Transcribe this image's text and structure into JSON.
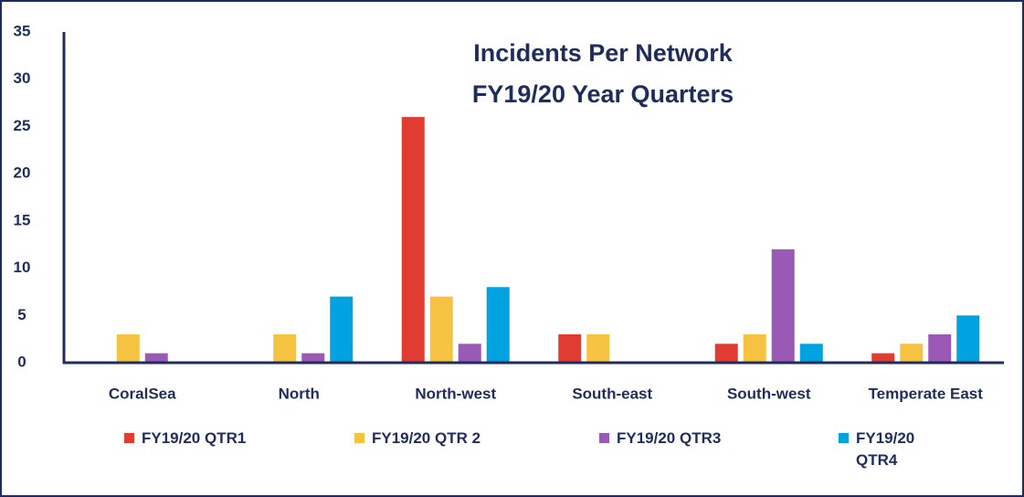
{
  "chart_data": {
    "type": "bar",
    "title": [
      "Incidents Per Network",
      "FY19/20 Year Quarters"
    ],
    "categories": [
      "CoralSea",
      "North",
      "North-west",
      "South-east",
      "South-west",
      "Temperate East"
    ],
    "series": [
      {
        "name": "FY19/20 QTR1",
        "color": "#e03c31",
        "values": [
          0,
          0,
          26,
          3,
          2,
          1
        ]
      },
      {
        "name": "FY19/20 QTR 2",
        "color": "#f5c242",
        "values": [
          3,
          3,
          7,
          3,
          3,
          2
        ]
      },
      {
        "name": "FY19/20 QTR3",
        "color": "#9b59b6",
        "values": [
          1,
          1,
          2,
          0,
          12,
          3
        ]
      },
      {
        "name": "FY19/20 QTR4",
        "color": "#00a2e0",
        "values": [
          0,
          7,
          8,
          0,
          2,
          5
        ]
      }
    ],
    "ylim": [
      0,
      35
    ],
    "yticks": [
      0,
      5,
      10,
      15,
      20,
      25,
      30,
      35
    ],
    "grid": false
  }
}
